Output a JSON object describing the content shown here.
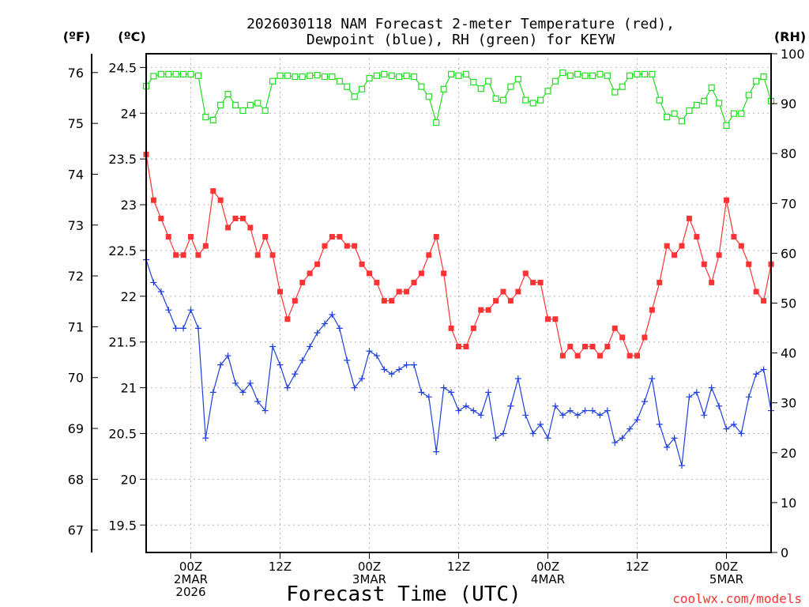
{
  "chart_data": {
    "type": "line",
    "title_line1": "2026030118 NAM Forecast 2-meter Temperature (red),",
    "title_line2": "Dewpoint (blue), RH (green) for KEYW",
    "xlabel": "Forecast Time (UTC)",
    "credit": "coolwx.com/models",
    "left_unit_f": "(ºF)",
    "left_unit_c": "(ºC)",
    "right_unit": "(RH)",
    "ylim_c": [
      19.2,
      24.65
    ],
    "ylim_rh": [
      0,
      100
    ],
    "ticks_f": [
      "76",
      "75",
      "74",
      "73",
      "72",
      "71",
      "70",
      "69",
      "68",
      "67"
    ],
    "ticks_f_values": [
      76,
      75,
      74,
      73,
      72,
      71,
      70,
      69,
      68,
      67
    ],
    "ticks_c": [
      "24.5",
      "24",
      "23.5",
      "23",
      "22.5",
      "22",
      "21.5",
      "21",
      "20.5",
      "20",
      "19.5"
    ],
    "ticks_c_values": [
      24.5,
      24,
      23.5,
      23,
      22.5,
      22,
      21.5,
      21,
      20.5,
      20,
      19.5
    ],
    "ticks_rh": [
      "100",
      "90",
      "80",
      "70",
      "60",
      "50",
      "40",
      "30",
      "20",
      "10",
      "0"
    ],
    "ticks_rh_values": [
      100,
      90,
      80,
      70,
      60,
      50,
      40,
      30,
      20,
      10,
      0
    ],
    "x_ticks": [
      {
        "hour": 6,
        "lines": [
          "00Z",
          "2MAR",
          "2026"
        ]
      },
      {
        "hour": 18,
        "lines": [
          "12Z"
        ]
      },
      {
        "hour": 30,
        "lines": [
          "00Z",
          "3MAR"
        ]
      },
      {
        "hour": 42,
        "lines": [
          "12Z"
        ]
      },
      {
        "hour": 54,
        "lines": [
          "00Z",
          "4MAR"
        ]
      },
      {
        "hour": 66,
        "lines": [
          "12Z"
        ]
      },
      {
        "hour": 78,
        "lines": [
          "00Z",
          "5MAR"
        ]
      }
    ],
    "x_range_hours": [
      0,
      84
    ],
    "series": [
      {
        "name": "Temperature",
        "unit": "C",
        "color": "#ff3333",
        "marker": "filled-square",
        "values": [
          23.55,
          23.05,
          22.85,
          22.65,
          22.45,
          22.45,
          22.65,
          22.45,
          22.55,
          23.15,
          23.05,
          22.75,
          22.85,
          22.85,
          22.75,
          22.45,
          22.65,
          22.45,
          22.05,
          21.75,
          21.95,
          22.15,
          22.25,
          22.35,
          22.55,
          22.65,
          22.65,
          22.55,
          22.55,
          22.35,
          22.25,
          22.15,
          21.95,
          21.95,
          22.05,
          22.05,
          22.15,
          22.25,
          22.45,
          22.65,
          22.25,
          21.65,
          21.45,
          21.45,
          21.65,
          21.85,
          21.85,
          21.95,
          22.05,
          21.95,
          22.05,
          22.25,
          22.15,
          22.15,
          21.75,
          21.75,
          21.35,
          21.45,
          21.35,
          21.45,
          21.45,
          21.35,
          21.45,
          21.65,
          21.55,
          21.35,
          21.35,
          21.55,
          21.85,
          22.15,
          22.55,
          22.45,
          22.55,
          22.85,
          22.65,
          22.35,
          22.15,
          22.45,
          23.05,
          22.65,
          22.55,
          22.35,
          22.05,
          21.95,
          22.35
        ]
      },
      {
        "name": "Dewpoint",
        "unit": "C",
        "color": "#1f3fdf",
        "marker": "plus",
        "values": [
          22.4,
          22.15,
          22.05,
          21.85,
          21.65,
          21.65,
          21.85,
          21.65,
          20.45,
          20.95,
          21.25,
          21.35,
          21.05,
          20.95,
          21.05,
          20.85,
          20.75,
          21.45,
          21.25,
          21.0,
          21.15,
          21.3,
          21.45,
          21.6,
          21.7,
          21.8,
          21.65,
          21.3,
          21.0,
          21.1,
          21.4,
          21.35,
          21.2,
          21.15,
          21.2,
          21.25,
          21.25,
          20.95,
          20.9,
          20.3,
          21.0,
          20.95,
          20.75,
          20.8,
          20.75,
          20.7,
          20.95,
          20.45,
          20.5,
          20.8,
          21.1,
          20.7,
          20.5,
          20.6,
          20.45,
          20.8,
          20.7,
          20.75,
          20.7,
          20.75,
          20.75,
          20.7,
          20.75,
          20.4,
          20.45,
          20.55,
          20.65,
          20.85,
          21.1,
          20.6,
          20.35,
          20.45,
          20.15,
          20.9,
          20.95,
          20.7,
          21.0,
          20.8,
          20.55,
          20.6,
          20.5,
          20.9,
          21.15,
          21.2,
          20.75
        ]
      },
      {
        "name": "RH",
        "unit": "%",
        "color": "#22dd22",
        "marker": "open-square",
        "values": [
          93.5,
          95.5,
          95.9,
          95.9,
          95.9,
          95.9,
          95.9,
          95.6,
          87.3,
          86.7,
          89.7,
          91.9,
          89.7,
          88.6,
          89.7,
          90.1,
          88.6,
          94.5,
          95.6,
          95.6,
          95.4,
          95.4,
          95.6,
          95.7,
          95.4,
          95.4,
          94.5,
          93.4,
          91.4,
          92.9,
          95.1,
          95.6,
          95.9,
          95.6,
          95.4,
          95.6,
          95.4,
          93.4,
          91.4,
          86.2,
          92.9,
          95.9,
          95.6,
          95.9,
          94.3,
          93.0,
          94.5,
          91.0,
          90.7,
          93.4,
          94.9,
          90.7,
          90.1,
          90.7,
          92.5,
          94.5,
          96.2,
          95.6,
          95.9,
          95.6,
          95.6,
          95.9,
          95.6,
          92.3,
          93.4,
          95.6,
          95.9,
          95.9,
          95.9,
          90.7,
          87.3,
          88.0,
          86.5,
          88.6,
          89.7,
          90.5,
          93.2,
          90.1,
          85.6,
          88.0,
          88.0,
          91.7,
          94.5,
          95.4,
          90.5
        ]
      }
    ]
  }
}
